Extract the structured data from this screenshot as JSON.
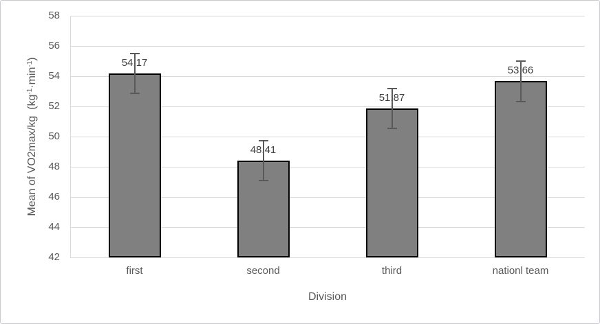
{
  "figure": {
    "background": "#ffffff",
    "border_color": "#c9c9d2"
  },
  "chart_data": {
    "type": "bar",
    "title": "",
    "categories": [
      "first",
      "second",
      "third",
      "nationl team"
    ],
    "values": [
      54.17,
      48.41,
      51.87,
      53.66
    ],
    "value_labels": [
      "54.17",
      "48.41",
      "51.87",
      "53.66"
    ],
    "errors": [
      1.32,
      1.3,
      1.33,
      1.35
    ],
    "xlabel": "Division",
    "ylabel": "Mean of VO2max/kg  (kg⁻¹·min⁻¹)",
    "ylabel_parts": [
      {
        "t": "Mean of VO2max/kg  (kg"
      },
      {
        "t": "-1",
        "sup": true
      },
      {
        "t": "·min"
      },
      {
        "t": "-1",
        "sup": true
      },
      {
        "t": ")"
      }
    ],
    "ylim": [
      42,
      58
    ],
    "yticks": [
      42,
      44,
      46,
      48,
      50,
      52,
      54,
      56,
      58
    ],
    "grid": true,
    "legend": "none",
    "colors": {
      "bar_fill": "#808080",
      "bar_border": "#000000",
      "error_bar": "#595959",
      "gridline": "#d9d9d9",
      "axis_line": "#d9d9d9",
      "tick_label": "#595959",
      "category_label": "#595959",
      "axis_title": "#595959",
      "value_label": "#404040"
    }
  }
}
